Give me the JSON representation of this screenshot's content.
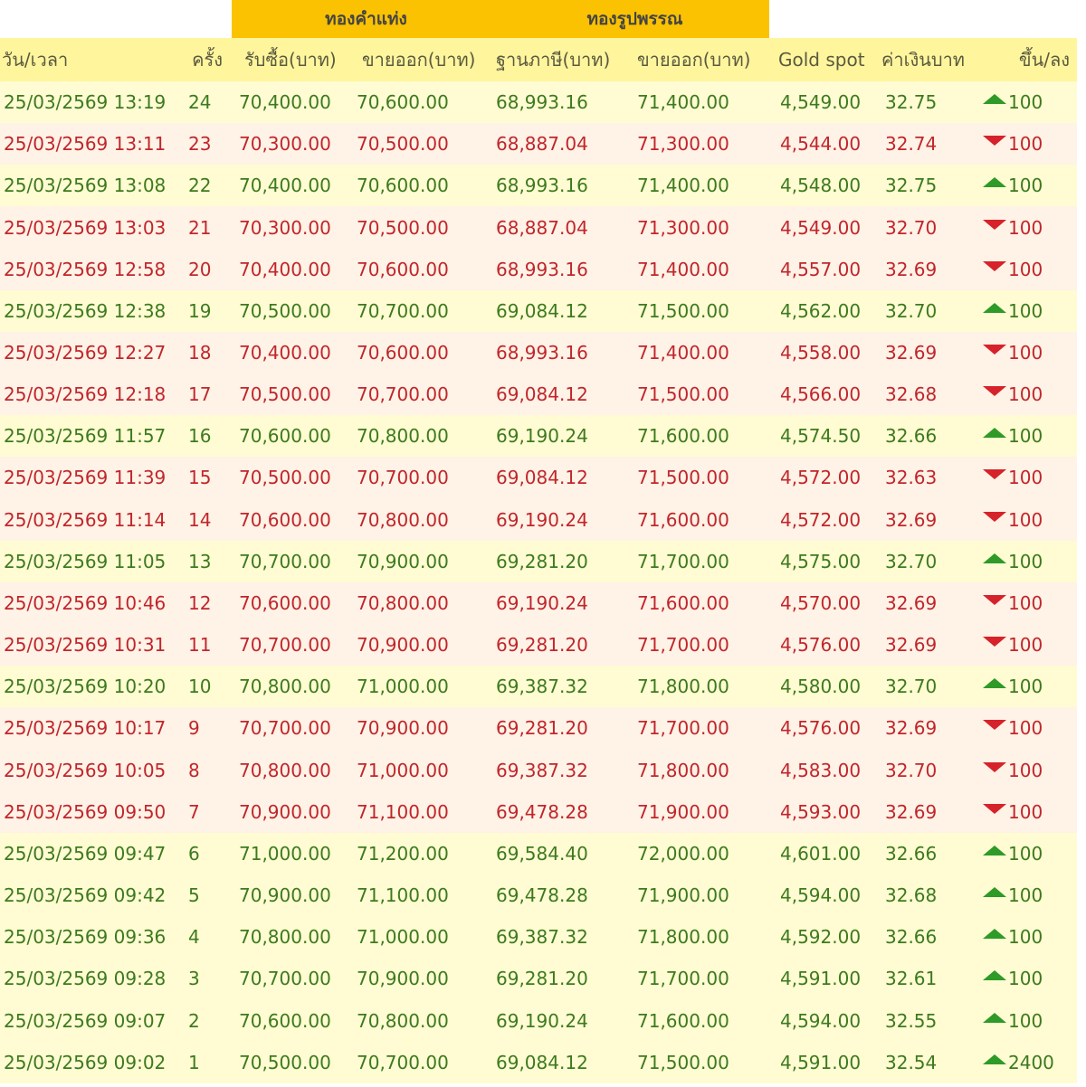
{
  "group_headers": [
    "ทองคำแท่ง",
    "ทองรูปพรรณ"
  ],
  "columns": [
    "วัน/เวลา",
    "ครั้ง",
    "รับซื้อ(บาท)",
    "ขายออก(บาท)",
    "ฐานภาษี(บาท)",
    "ขายออก(บาท)",
    "Gold spot",
    "ค่าเงินบาท",
    "ขึ้น/ลง"
  ],
  "colors": {
    "group_header_bg": "#fbc202",
    "header_bg": "#fff59d",
    "up_text": "#3d7a1e",
    "down_text": "#c0262c",
    "up_arrow": "#2e9a28",
    "down_arrow": "#d6222a"
  },
  "rows": [
    {
      "datetime": "25/03/2569 13:19",
      "round": "24",
      "bar_buy": "70,400.00",
      "bar_sell": "70,600.00",
      "ornament_tax_base": "68,993.16",
      "ornament_sell": "71,400.00",
      "gold_spot": "4,549.00",
      "thb": "32.75",
      "direction": "up",
      "change": "100"
    },
    {
      "datetime": "25/03/2569 13:11",
      "round": "23",
      "bar_buy": "70,300.00",
      "bar_sell": "70,500.00",
      "ornament_tax_base": "68,887.04",
      "ornament_sell": "71,300.00",
      "gold_spot": "4,544.00",
      "thb": "32.74",
      "direction": "down",
      "change": "100"
    },
    {
      "datetime": "25/03/2569 13:08",
      "round": "22",
      "bar_buy": "70,400.00",
      "bar_sell": "70,600.00",
      "ornament_tax_base": "68,993.16",
      "ornament_sell": "71,400.00",
      "gold_spot": "4,548.00",
      "thb": "32.75",
      "direction": "up",
      "change": "100"
    },
    {
      "datetime": "25/03/2569 13:03",
      "round": "21",
      "bar_buy": "70,300.00",
      "bar_sell": "70,500.00",
      "ornament_tax_base": "68,887.04",
      "ornament_sell": "71,300.00",
      "gold_spot": "4,549.00",
      "thb": "32.70",
      "direction": "down",
      "change": "100"
    },
    {
      "datetime": "25/03/2569 12:58",
      "round": "20",
      "bar_buy": "70,400.00",
      "bar_sell": "70,600.00",
      "ornament_tax_base": "68,993.16",
      "ornament_sell": "71,400.00",
      "gold_spot": "4,557.00",
      "thb": "32.69",
      "direction": "down",
      "change": "100"
    },
    {
      "datetime": "25/03/2569 12:38",
      "round": "19",
      "bar_buy": "70,500.00",
      "bar_sell": "70,700.00",
      "ornament_tax_base": "69,084.12",
      "ornament_sell": "71,500.00",
      "gold_spot": "4,562.00",
      "thb": "32.70",
      "direction": "up",
      "change": "100"
    },
    {
      "datetime": "25/03/2569 12:27",
      "round": "18",
      "bar_buy": "70,400.00",
      "bar_sell": "70,600.00",
      "ornament_tax_base": "68,993.16",
      "ornament_sell": "71,400.00",
      "gold_spot": "4,558.00",
      "thb": "32.69",
      "direction": "down",
      "change": "100"
    },
    {
      "datetime": "25/03/2569 12:18",
      "round": "17",
      "bar_buy": "70,500.00",
      "bar_sell": "70,700.00",
      "ornament_tax_base": "69,084.12",
      "ornament_sell": "71,500.00",
      "gold_spot": "4,566.00",
      "thb": "32.68",
      "direction": "down",
      "change": "100"
    },
    {
      "datetime": "25/03/2569 11:57",
      "round": "16",
      "bar_buy": "70,600.00",
      "bar_sell": "70,800.00",
      "ornament_tax_base": "69,190.24",
      "ornament_sell": "71,600.00",
      "gold_spot": "4,574.50",
      "thb": "32.66",
      "direction": "up",
      "change": "100"
    },
    {
      "datetime": "25/03/2569 11:39",
      "round": "15",
      "bar_buy": "70,500.00",
      "bar_sell": "70,700.00",
      "ornament_tax_base": "69,084.12",
      "ornament_sell": "71,500.00",
      "gold_spot": "4,572.00",
      "thb": "32.63",
      "direction": "down",
      "change": "100"
    },
    {
      "datetime": "25/03/2569 11:14",
      "round": "14",
      "bar_buy": "70,600.00",
      "bar_sell": "70,800.00",
      "ornament_tax_base": "69,190.24",
      "ornament_sell": "71,600.00",
      "gold_spot": "4,572.00",
      "thb": "32.69",
      "direction": "down",
      "change": "100"
    },
    {
      "datetime": "25/03/2569 11:05",
      "round": "13",
      "bar_buy": "70,700.00",
      "bar_sell": "70,900.00",
      "ornament_tax_base": "69,281.20",
      "ornament_sell": "71,700.00",
      "gold_spot": "4,575.00",
      "thb": "32.70",
      "direction": "up",
      "change": "100"
    },
    {
      "datetime": "25/03/2569 10:46",
      "round": "12",
      "bar_buy": "70,600.00",
      "bar_sell": "70,800.00",
      "ornament_tax_base": "69,190.24",
      "ornament_sell": "71,600.00",
      "gold_spot": "4,570.00",
      "thb": "32.69",
      "direction": "down",
      "change": "100"
    },
    {
      "datetime": "25/03/2569 10:31",
      "round": "11",
      "bar_buy": "70,700.00",
      "bar_sell": "70,900.00",
      "ornament_tax_base": "69,281.20",
      "ornament_sell": "71,700.00",
      "gold_spot": "4,576.00",
      "thb": "32.69",
      "direction": "down",
      "change": "100"
    },
    {
      "datetime": "25/03/2569 10:20",
      "round": "10",
      "bar_buy": "70,800.00",
      "bar_sell": "71,000.00",
      "ornament_tax_base": "69,387.32",
      "ornament_sell": "71,800.00",
      "gold_spot": "4,580.00",
      "thb": "32.70",
      "direction": "up",
      "change": "100"
    },
    {
      "datetime": "25/03/2569 10:17",
      "round": "9",
      "bar_buy": "70,700.00",
      "bar_sell": "70,900.00",
      "ornament_tax_base": "69,281.20",
      "ornament_sell": "71,700.00",
      "gold_spot": "4,576.00",
      "thb": "32.69",
      "direction": "down",
      "change": "100"
    },
    {
      "datetime": "25/03/2569 10:05",
      "round": "8",
      "bar_buy": "70,800.00",
      "bar_sell": "71,000.00",
      "ornament_tax_base": "69,387.32",
      "ornament_sell": "71,800.00",
      "gold_spot": "4,583.00",
      "thb": "32.70",
      "direction": "down",
      "change": "100"
    },
    {
      "datetime": "25/03/2569 09:50",
      "round": "7",
      "bar_buy": "70,900.00",
      "bar_sell": "71,100.00",
      "ornament_tax_base": "69,478.28",
      "ornament_sell": "71,900.00",
      "gold_spot": "4,593.00",
      "thb": "32.69",
      "direction": "down",
      "change": "100"
    },
    {
      "datetime": "25/03/2569 09:47",
      "round": "6",
      "bar_buy": "71,000.00",
      "bar_sell": "71,200.00",
      "ornament_tax_base": "69,584.40",
      "ornament_sell": "72,000.00",
      "gold_spot": "4,601.00",
      "thb": "32.66",
      "direction": "up",
      "change": "100"
    },
    {
      "datetime": "25/03/2569 09:42",
      "round": "5",
      "bar_buy": "70,900.00",
      "bar_sell": "71,100.00",
      "ornament_tax_base": "69,478.28",
      "ornament_sell": "71,900.00",
      "gold_spot": "4,594.00",
      "thb": "32.68",
      "direction": "up",
      "change": "100"
    },
    {
      "datetime": "25/03/2569 09:36",
      "round": "4",
      "bar_buy": "70,800.00",
      "bar_sell": "71,000.00",
      "ornament_tax_base": "69,387.32",
      "ornament_sell": "71,800.00",
      "gold_spot": "4,592.00",
      "thb": "32.66",
      "direction": "up",
      "change": "100"
    },
    {
      "datetime": "25/03/2569 09:28",
      "round": "3",
      "bar_buy": "70,700.00",
      "bar_sell": "70,900.00",
      "ornament_tax_base": "69,281.20",
      "ornament_sell": "71,700.00",
      "gold_spot": "4,591.00",
      "thb": "32.61",
      "direction": "up",
      "change": "100"
    },
    {
      "datetime": "25/03/2569 09:07",
      "round": "2",
      "bar_buy": "70,600.00",
      "bar_sell": "70,800.00",
      "ornament_tax_base": "69,190.24",
      "ornament_sell": "71,600.00",
      "gold_spot": "4,594.00",
      "thb": "32.55",
      "direction": "up",
      "change": "100"
    },
    {
      "datetime": "25/03/2569 09:02",
      "round": "1",
      "bar_buy": "70,500.00",
      "bar_sell": "70,700.00",
      "ornament_tax_base": "69,084.12",
      "ornament_sell": "71,500.00",
      "gold_spot": "4,591.00",
      "thb": "32.54",
      "direction": "up",
      "change": "2400"
    }
  ]
}
